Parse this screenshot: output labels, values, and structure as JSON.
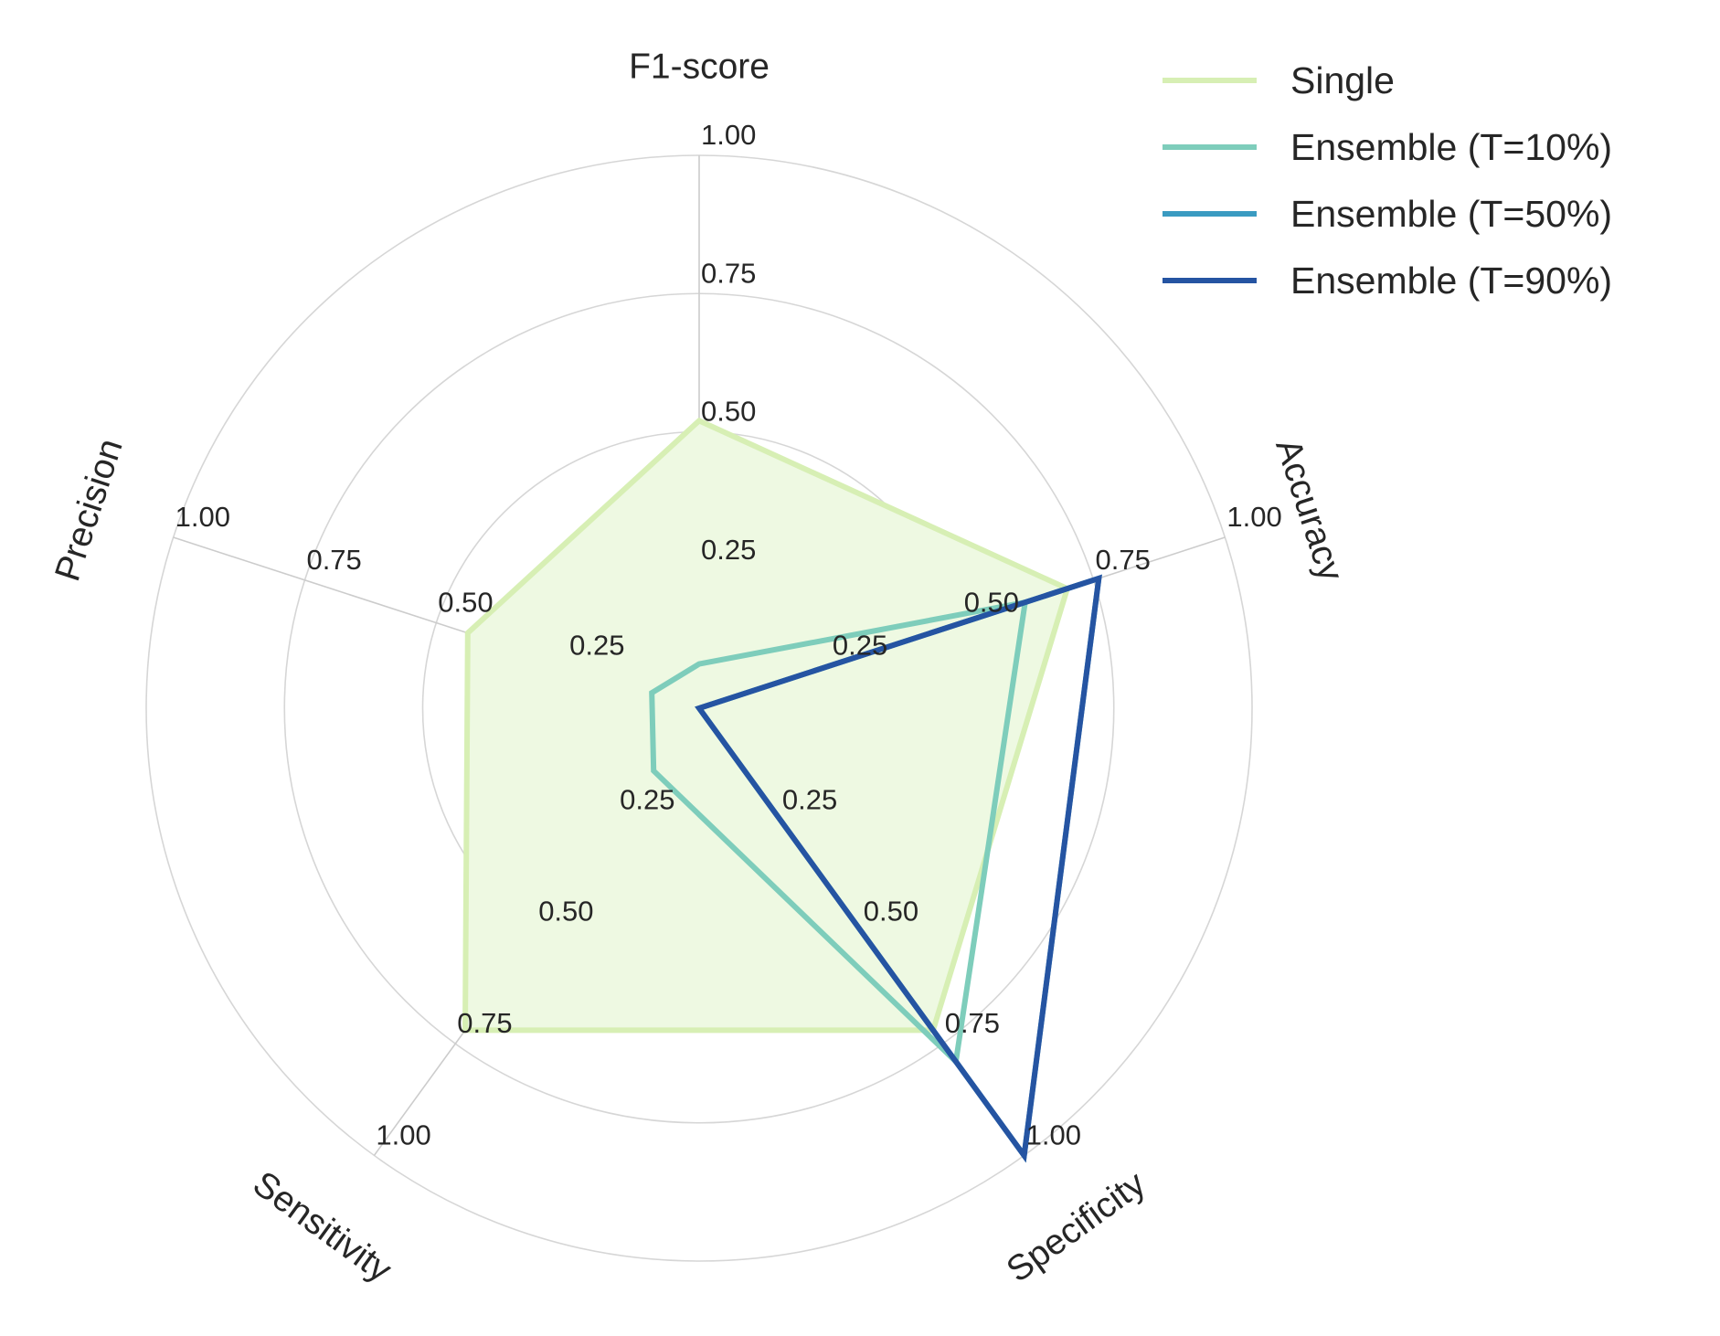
{
  "chart_data": {
    "type": "radar",
    "axes": [
      "F1-score",
      "Accuracy",
      "Specificity",
      "Sensitivity",
      "Precision"
    ],
    "rlim": [
      0,
      1
    ],
    "ticks": [
      "0.25",
      "0.50",
      "0.75",
      "1.00"
    ],
    "tick_values": [
      0.25,
      0.5,
      0.75,
      1.0
    ],
    "grid": true,
    "legend_position": "top-right",
    "series": [
      {
        "name": "Single",
        "values": [
          0.52,
          0.7,
          0.72,
          0.72,
          0.44
        ],
        "color": "#d7efb4",
        "fill": "#eef9e2"
      },
      {
        "name": "Ensemble (T=10%)",
        "values": [
          0.08,
          0.62,
          0.79,
          0.14,
          0.09
        ],
        "color": "#7ecdbb"
      },
      {
        "name": "Ensemble (T=50%)",
        "values": [
          0.0,
          0.76,
          1.0,
          0.0,
          0.0
        ],
        "color": "#3a9bc1"
      },
      {
        "name": "Ensemble (T=90%)",
        "values": [
          0.0,
          0.76,
          1.0,
          0.0,
          0.0
        ],
        "color": "#2554a2"
      }
    ]
  }
}
